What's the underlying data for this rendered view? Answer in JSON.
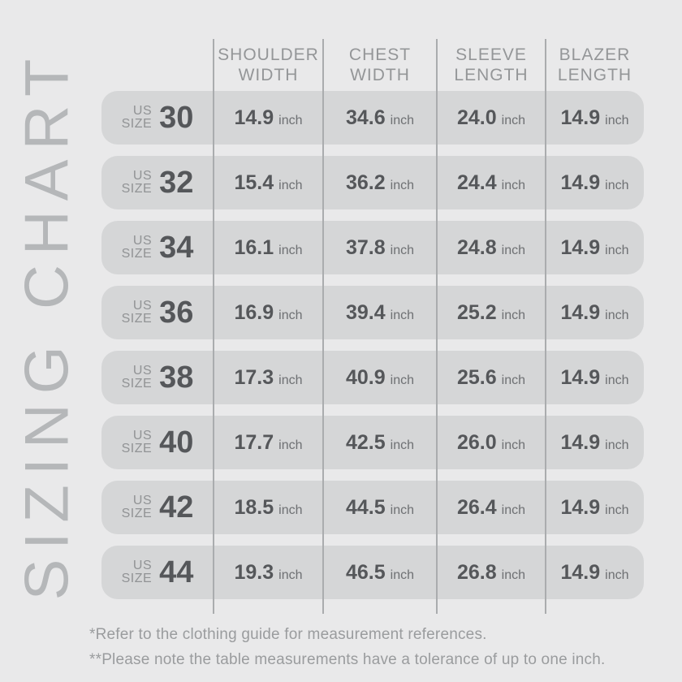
{
  "page_title": "SIZING CHART",
  "table": {
    "headers": [
      {
        "line1": "SHOULDER",
        "line2": "WIDTH"
      },
      {
        "line1": "CHEST",
        "line2": "WIDTH"
      },
      {
        "line1": "SLEEVE",
        "line2": "LENGTH"
      },
      {
        "line1": "BLAZER",
        "line2": "LENGTH"
      }
    ],
    "size_label_top": "US",
    "size_label_bottom": "SIZE",
    "unit": "inch",
    "rows": [
      {
        "size": "30",
        "shoulder_width": "14.9",
        "chest_width": "34.6",
        "sleeve_length": "24.0",
        "blazer_length": "14.9"
      },
      {
        "size": "32",
        "shoulder_width": "15.4",
        "chest_width": "36.2",
        "sleeve_length": "24.4",
        "blazer_length": "14.9"
      },
      {
        "size": "34",
        "shoulder_width": "16.1",
        "chest_width": "37.8",
        "sleeve_length": "24.8",
        "blazer_length": "14.9"
      },
      {
        "size": "36",
        "shoulder_width": "16.9",
        "chest_width": "39.4",
        "sleeve_length": "25.2",
        "blazer_length": "14.9"
      },
      {
        "size": "38",
        "shoulder_width": "17.3",
        "chest_width": "40.9",
        "sleeve_length": "25.6",
        "blazer_length": "14.9"
      },
      {
        "size": "40",
        "shoulder_width": "17.7",
        "chest_width": "42.5",
        "sleeve_length": "26.0",
        "blazer_length": "14.9"
      },
      {
        "size": "42",
        "shoulder_width": "18.5",
        "chest_width": "44.5",
        "sleeve_length": "26.4",
        "blazer_length": "14.9"
      },
      {
        "size": "44",
        "shoulder_width": "19.3",
        "chest_width": "46.5",
        "sleeve_length": "26.8",
        "blazer_length": "14.9"
      }
    ]
  },
  "footnotes": {
    "line1": "*Refer to the clothing guide for measurement references.",
    "line2": "**Please note the table measurements have a tolerance of up to one inch."
  },
  "colors": {
    "page_background": "#e9e9ea",
    "row_background": "#d5d6d7",
    "divider": "#aaacae",
    "dark_text": "#55575a",
    "muted_text": "#949698",
    "label_text": "#919395",
    "unit_text": "#6e7073",
    "title_text": "#b5b7b9",
    "footnote_text": "#9a9c9e"
  },
  "chart_data": {
    "type": "table",
    "title": "SIZING CHART",
    "unit": "inch",
    "columns": [
      "US SIZE",
      "SHOULDER WIDTH",
      "CHEST WIDTH",
      "SLEEVE LENGTH",
      "BLAZER LENGTH"
    ],
    "rows": [
      [
        30,
        14.9,
        34.6,
        24.0,
        14.9
      ],
      [
        32,
        15.4,
        36.2,
        24.4,
        14.9
      ],
      [
        34,
        16.1,
        37.8,
        24.8,
        14.9
      ],
      [
        36,
        16.9,
        39.4,
        25.2,
        14.9
      ],
      [
        38,
        17.3,
        40.9,
        25.6,
        14.9
      ],
      [
        40,
        17.7,
        42.5,
        26.0,
        14.9
      ],
      [
        42,
        18.5,
        44.5,
        26.4,
        14.9
      ],
      [
        44,
        19.3,
        46.5,
        26.8,
        14.9
      ]
    ],
    "notes": [
      "*Refer to the clothing guide for measurement references.",
      "**Please note the table measurements have a tolerance of up to one inch."
    ]
  }
}
